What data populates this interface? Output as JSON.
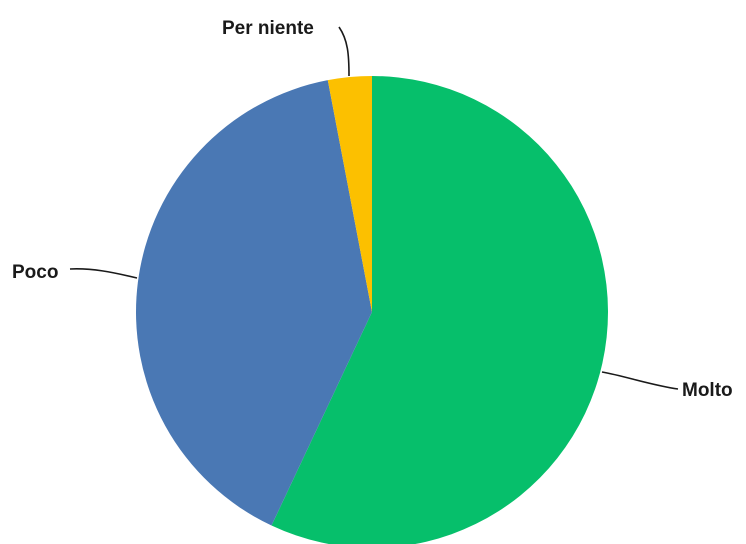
{
  "chart_data": {
    "type": "pie",
    "title": "",
    "start_angle_deg": 0,
    "direction": "clockwise",
    "legend": "none",
    "slices": [
      {
        "label": "Molto",
        "value": 57,
        "color": "#06bf6b"
      },
      {
        "label": "Poco",
        "value": 40,
        "color": "#4a78b4"
      },
      {
        "label": "Per niente",
        "value": 3,
        "color": "#fcc000"
      }
    ]
  }
}
